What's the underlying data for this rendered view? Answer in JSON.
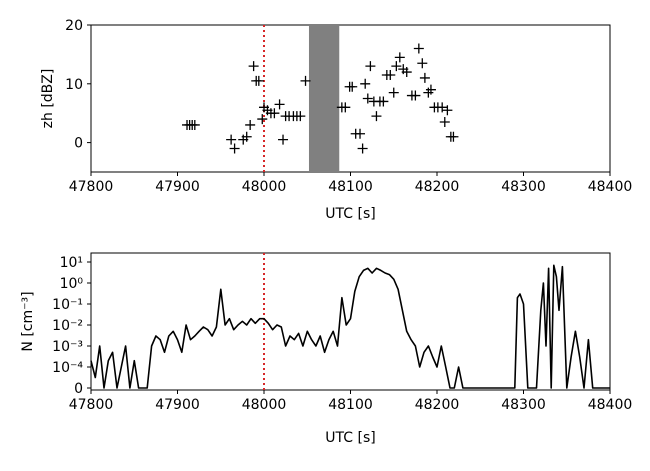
{
  "chart_data": [
    {
      "type": "scatter",
      "xlabel": "UTC [s]",
      "ylabel": "zh [dBZ]",
      "xlim": [
        47800,
        48400
      ],
      "ylim": [
        -5,
        20
      ],
      "xticks": [
        "47800",
        "47900",
        "48000",
        "48100",
        "48200",
        "48300",
        "48400"
      ],
      "yticks": [
        "0",
        "10",
        "20"
      ],
      "marker": "+",
      "color": "#000000",
      "reference_line": {
        "x": 48000,
        "color": "#d62728",
        "style": "dotted"
      },
      "shaded_span": {
        "x": [
          48052,
          48087
        ],
        "color": "#808080"
      },
      "points": [
        [
          47911,
          3
        ],
        [
          47914,
          3
        ],
        [
          47917,
          3
        ],
        [
          47920,
          3
        ],
        [
          47962,
          0.5
        ],
        [
          47966,
          -1
        ],
        [
          47976,
          0.5
        ],
        [
          47980,
          1
        ],
        [
          47984,
          3
        ],
        [
          47988,
          13
        ],
        [
          47991,
          10.5
        ],
        [
          47994,
          10.5
        ],
        [
          47998,
          4
        ],
        [
          48000,
          6
        ],
        [
          48004,
          5.5
        ],
        [
          48008,
          5
        ],
        [
          48012,
          5
        ],
        [
          48018,
          6.5
        ],
        [
          48022,
          0.5
        ],
        [
          48025,
          4.5
        ],
        [
          48029,
          4.5
        ],
        [
          48034,
          4.5
        ],
        [
          48038,
          4.5
        ],
        [
          48042,
          4.5
        ],
        [
          48048,
          10.5
        ],
        [
          48090,
          6
        ],
        [
          48094,
          6
        ],
        [
          48099,
          9.5
        ],
        [
          48102,
          9.5
        ],
        [
          48106,
          1.5
        ],
        [
          48111,
          1.5
        ],
        [
          48114,
          -1
        ],
        [
          48117,
          10
        ],
        [
          48120,
          7.5
        ],
        [
          48123,
          13
        ],
        [
          48127,
          7
        ],
        [
          48130,
          4.5
        ],
        [
          48134,
          7
        ],
        [
          48138,
          7
        ],
        [
          48142,
          11.5
        ],
        [
          48146,
          11.5
        ],
        [
          48150,
          8.5
        ],
        [
          48153,
          13
        ],
        [
          48157,
          14.5
        ],
        [
          48161,
          12.5
        ],
        [
          48165,
          12
        ],
        [
          48171,
          8
        ],
        [
          48175,
          8
        ],
        [
          48179,
          16
        ],
        [
          48183,
          13.5
        ],
        [
          48186,
          11
        ],
        [
          48190,
          8.5
        ],
        [
          48193,
          9
        ],
        [
          48197,
          6
        ],
        [
          48201,
          6
        ],
        [
          48206,
          6
        ],
        [
          48209,
          3.5
        ],
        [
          48212,
          5.5
        ],
        [
          48216,
          1
        ],
        [
          48219,
          1
        ]
      ]
    },
    {
      "type": "line",
      "xlabel": "UTC [s]",
      "ylabel": "N [cm⁻³]",
      "xlim": [
        47800,
        48400
      ],
      "yscale": "symlog",
      "linthresh": 0.0001,
      "ylim": [
        0,
        30
      ],
      "xticks": [
        "47800",
        "47900",
        "48000",
        "48100",
        "48200",
        "48300",
        "48400"
      ],
      "yticks": [
        "0",
        "10⁻⁴",
        "10⁻³",
        "10⁻²",
        "10⁻¹",
        "10⁰",
        "10¹"
      ],
      "color": "#000000",
      "reference_line": {
        "x": 48000,
        "color": "#d62728",
        "style": "dotted"
      },
      "x": [
        47800,
        47805,
        47810,
        47815,
        47820,
        47825,
        47830,
        47835,
        47840,
        47845,
        47850,
        47855,
        47860,
        47865,
        47870,
        47875,
        47880,
        47885,
        47890,
        47895,
        47900,
        47905,
        47910,
        47915,
        47920,
        47925,
        47930,
        47935,
        47940,
        47945,
        47950,
        47955,
        47960,
        47965,
        47970,
        47975,
        47980,
        47985,
        47990,
        47995,
        48000,
        48005,
        48010,
        48015,
        48020,
        48025,
        48030,
        48035,
        48040,
        48045,
        48050,
        48055,
        48060,
        48065,
        48070,
        48075,
        48080,
        48085,
        48090,
        48095,
        48100,
        48105,
        48110,
        48115,
        48120,
        48125,
        48130,
        48135,
        48140,
        48145,
        48150,
        48155,
        48160,
        48165,
        48170,
        48175,
        48180,
        48185,
        48190,
        48195,
        48200,
        48205,
        48210,
        48215,
        48220,
        48225,
        48230,
        48290,
        48293,
        48296,
        48300,
        48305,
        48310,
        48315,
        48320,
        48323,
        48326,
        48329,
        48332,
        48335,
        48338,
        48341,
        48345,
        48350,
        48355,
        48360,
        48365,
        48370,
        48375,
        48380,
        48400
      ],
      "values": [
        0.0002,
        5e-05,
        0.001,
        0,
        0.0002,
        0.0005,
        0,
        0.0001,
        0.001,
        0,
        0.0002,
        0,
        0,
        0,
        0.001,
        0.003,
        0.002,
        0.0005,
        0.003,
        0.005,
        0.002,
        0.0005,
        0.01,
        0.002,
        0.003,
        0.005,
        0.008,
        0.006,
        0.003,
        0.008,
        0.5,
        0.01,
        0.02,
        0.006,
        0.01,
        0.015,
        0.01,
        0.02,
        0.012,
        0.02,
        0.02,
        0.012,
        0.006,
        0.01,
        0.008,
        0.001,
        0.003,
        0.002,
        0.004,
        0.001,
        0.005,
        0.002,
        0.001,
        0.003,
        0.0005,
        0.002,
        0.005,
        0.001,
        0.2,
        0.01,
        0.02,
        0.4,
        2,
        4,
        5,
        3,
        5,
        4,
        3,
        2.5,
        1.5,
        0.5,
        0.05,
        0.005,
        0.002,
        0.001,
        0.0001,
        0.0005,
        0.001,
        0.0003,
        0.0001,
        0.001,
        0.0001,
        0,
        0,
        0.0001,
        0,
        0,
        0.2,
        0.3,
        0.1,
        0,
        0,
        0,
        0.05,
        1,
        0.001,
        5,
        0,
        7,
        2,
        0.05,
        6,
        0,
        0.0003,
        0.005,
        0.0003,
        0,
        0.002,
        0,
        0
      ]
    }
  ]
}
